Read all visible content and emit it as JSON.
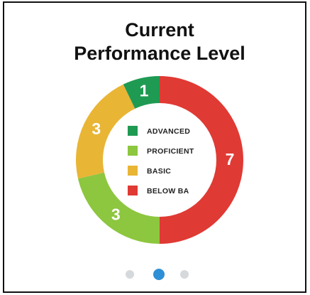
{
  "chart_data": {
    "type": "donut",
    "title_lines": [
      "Current",
      "Performance Level"
    ],
    "categories": [
      "ADVANCED",
      "PROFICIENT",
      "BASIC",
      "BELOW BA"
    ],
    "values": [
      1,
      3,
      3,
      7
    ],
    "colors": [
      "#1f9a52",
      "#8dc63f",
      "#e9b535",
      "#e03a34"
    ],
    "legend": "center"
  }
}
